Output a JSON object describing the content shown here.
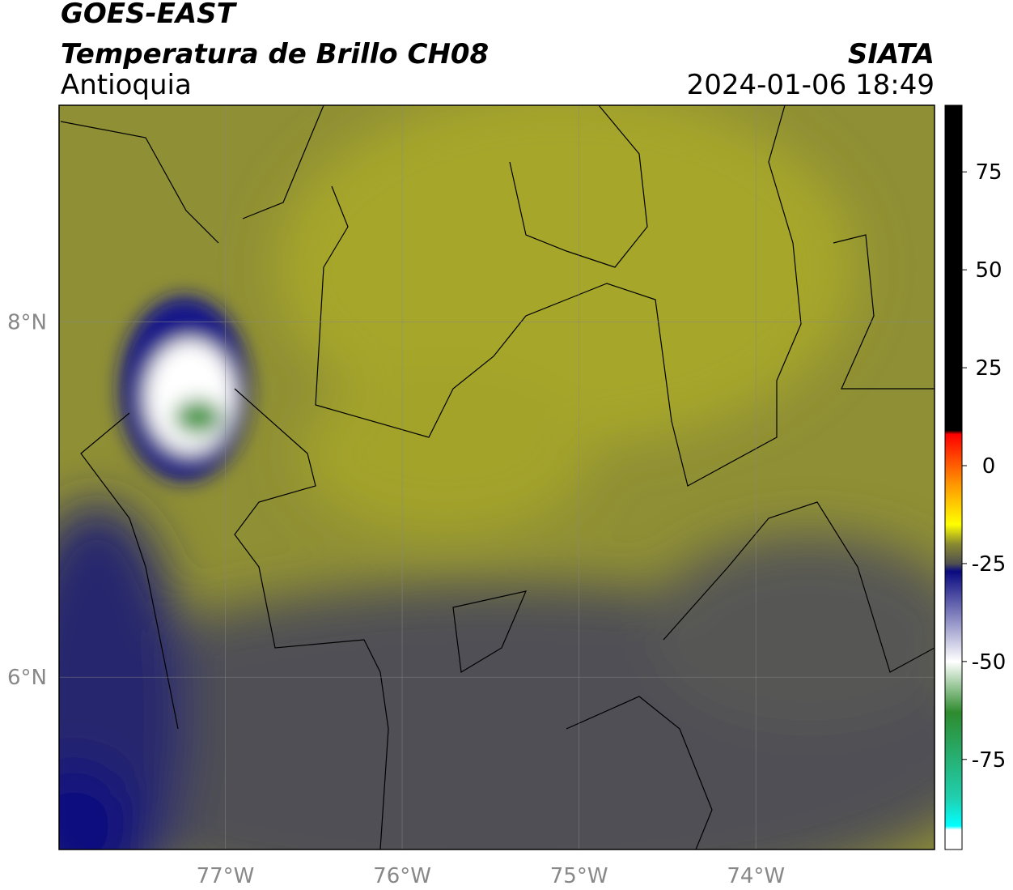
{
  "header": {
    "title": "GOES-EAST",
    "subtitle": "Temperatura de Brillo CH08",
    "region": "Antioquia",
    "source": "SIATA",
    "datetime": "2024-01-06 18:49"
  },
  "map": {
    "lon_range": [
      -77.94,
      -72.99
    ],
    "lat_range": [
      5.03,
      9.22
    ],
    "lon_ticks": [
      {
        "value": -77,
        "label": "77°W"
      },
      {
        "value": -76,
        "label": "76°W"
      },
      {
        "value": -75,
        "label": "75°W"
      },
      {
        "value": -74,
        "label": "74°W"
      }
    ],
    "lat_ticks": [
      {
        "value": 8,
        "label": "8°N"
      },
      {
        "value": 6,
        "label": "6°N"
      }
    ],
    "grid": true
  },
  "colorbar": {
    "range": [
      -98,
      92
    ],
    "ticks": [
      75,
      50,
      25,
      0,
      -25,
      -50,
      -75
    ],
    "colormap": [
      {
        "value": 92,
        "color": "#000000"
      },
      {
        "value": 9,
        "color": "#000000"
      },
      {
        "value": 8,
        "color": "#ff0000"
      },
      {
        "value": -5,
        "color": "#ff9900"
      },
      {
        "value": -15,
        "color": "#ffff00"
      },
      {
        "value": -20,
        "color": "#8a8a30"
      },
      {
        "value": -25,
        "color": "#505050"
      },
      {
        "value": -27,
        "color": "#0a0a80"
      },
      {
        "value": -50,
        "color": "#ffffff"
      },
      {
        "value": -63,
        "color": "#2e8b2e"
      },
      {
        "value": -85,
        "color": "#20d0b0"
      },
      {
        "value": -92,
        "color": "#00ffff"
      },
      {
        "value": -93,
        "color": "#ffffff"
      },
      {
        "value": -98,
        "color": "#ffffff"
      }
    ]
  }
}
